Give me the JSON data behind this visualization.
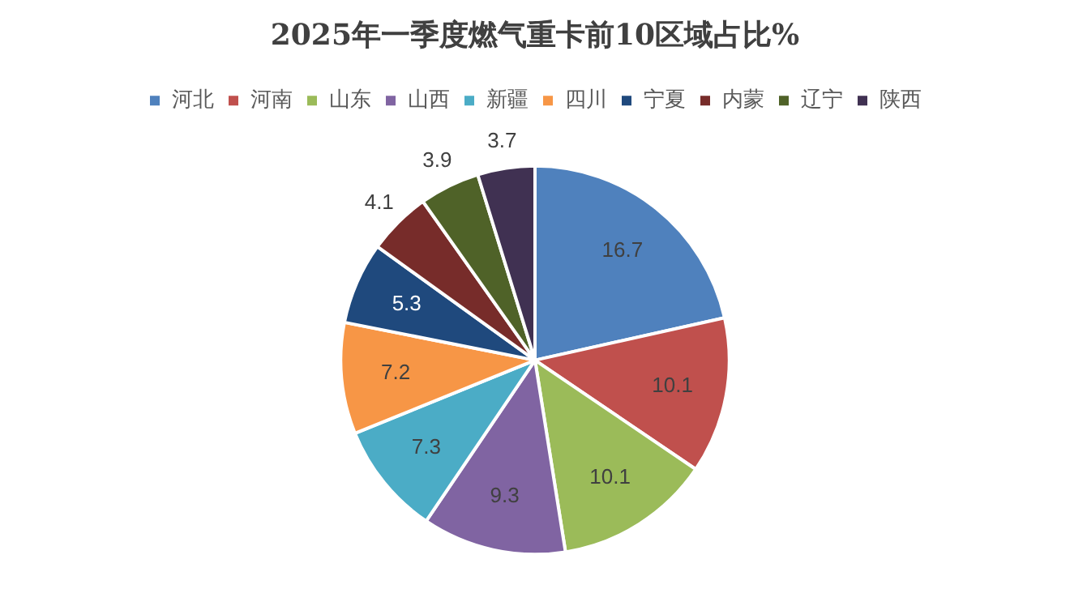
{
  "chart_data": {
    "type": "pie",
    "title": "2025年一季度燃气重卡前10区域占比%",
    "categories": [
      "河北",
      "河南",
      "山东",
      "山西",
      "新疆",
      "四川",
      "宁夏",
      "内蒙",
      "辽宁",
      "陕西"
    ],
    "values": [
      16.7,
      10.1,
      10.1,
      9.3,
      7.3,
      7.2,
      5.3,
      4.1,
      3.9,
      3.7
    ],
    "colors": [
      "#4f81bd",
      "#c0504d",
      "#9bbb59",
      "#8064a2",
      "#4bacc6",
      "#f79646",
      "#1f497d",
      "#772c2a",
      "#4f6228",
      "#403152"
    ],
    "legend": "top",
    "data_labels": true
  }
}
